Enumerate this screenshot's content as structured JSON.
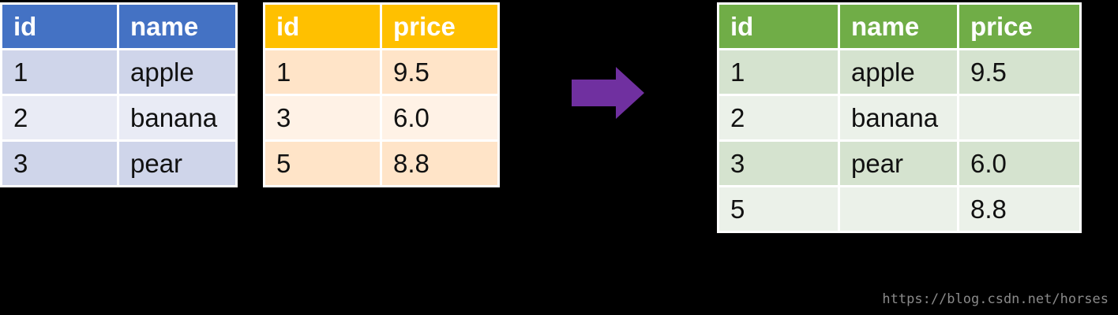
{
  "left_table": {
    "headers": [
      "id",
      "name"
    ],
    "rows": [
      [
        "1",
        "apple"
      ],
      [
        "2",
        "banana"
      ],
      [
        "3",
        "pear"
      ]
    ]
  },
  "middle_table": {
    "headers": [
      "id",
      "price"
    ],
    "rows": [
      [
        "1",
        "9.5"
      ],
      [
        "3",
        "6.0"
      ],
      [
        "5",
        "8.8"
      ]
    ]
  },
  "result_table": {
    "headers": [
      "id",
      "name",
      "price"
    ],
    "rows": [
      [
        "1",
        "apple",
        "9.5"
      ],
      [
        "2",
        "banana",
        ""
      ],
      [
        "3",
        "pear",
        "6.0"
      ],
      [
        "5",
        "",
        "8.8"
      ]
    ]
  },
  "arrow": {
    "icon": "right-arrow-icon",
    "color": "#7030a0"
  },
  "colors": {
    "left_header": "#4472c4",
    "middle_header": "#ffc000",
    "result_header": "#70ad47"
  },
  "watermark": "https://blog.csdn.net/horses"
}
